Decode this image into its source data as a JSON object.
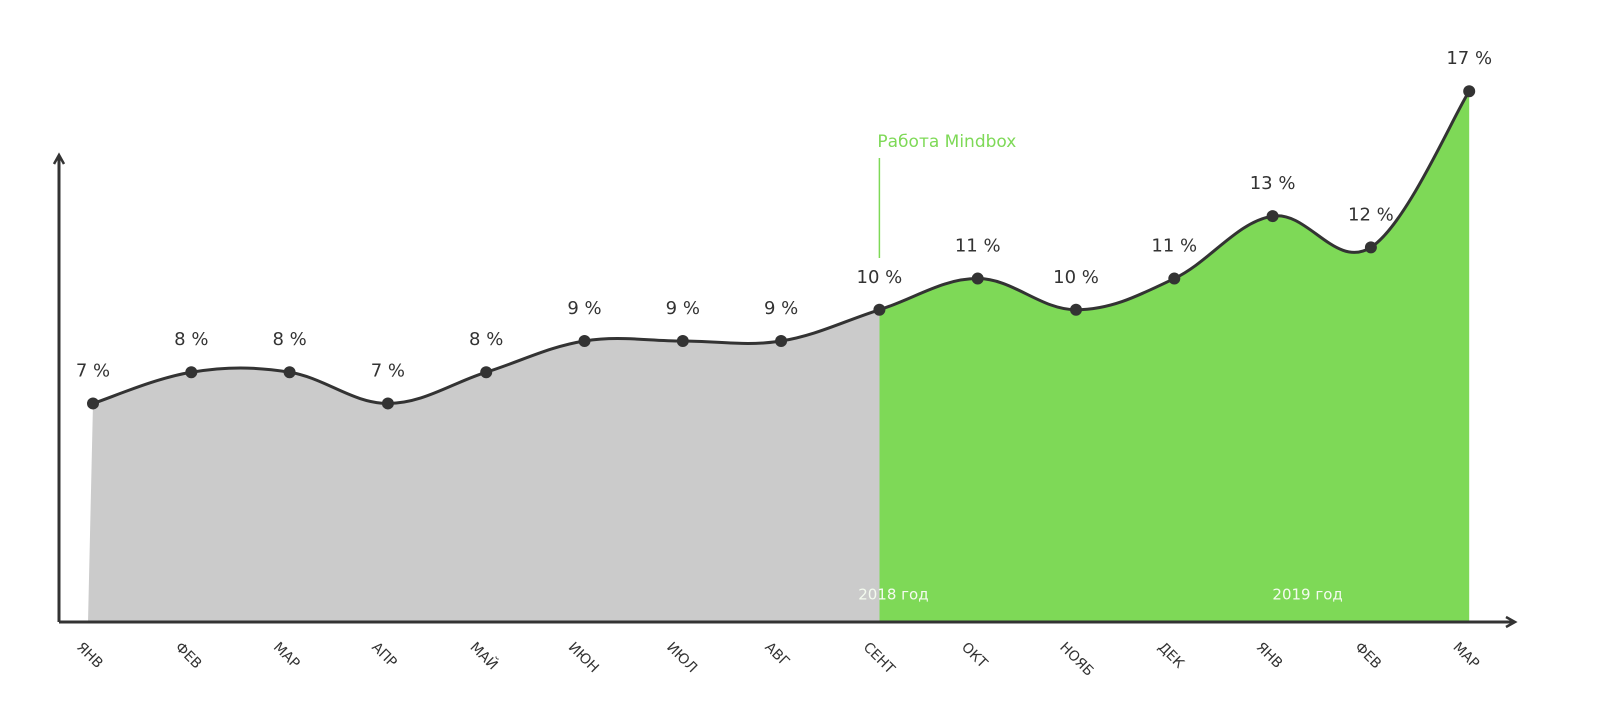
{
  "chart_data": {
    "type": "area",
    "categories": [
      "ЯНВ",
      "ФЕВ",
      "МАР",
      "АПР",
      "МАЙ",
      "ИЮН",
      "ИЮЛ",
      "АВГ",
      "СЕНТ",
      "ОКТ",
      "НОЯБ",
      "ДЕК",
      "ЯНВ",
      "ФЕВ",
      "МАР"
    ],
    "values": [
      7,
      8,
      8,
      7,
      8,
      9,
      9,
      9,
      10,
      11,
      10,
      11,
      13,
      12,
      17
    ],
    "value_labels": [
      "7 %",
      "8 %",
      "8 %",
      "7 %",
      "8 %",
      "9 %",
      "9 %",
      "9 %",
      "10 %",
      "11 %",
      "10 %",
      "11 %",
      "13 %",
      "12 %",
      "17 %"
    ],
    "ylim": [
      0,
      18
    ],
    "color": "#333333",
    "area_colors": [
      "#cbcbcb",
      "#7ed957"
    ],
    "annotation": {
      "text": "Работа Mindbox",
      "index": 8
    },
    "year_labels": [
      {
        "text": "2018 год",
        "index": 8
      },
      {
        "text": "2019 год",
        "index": 12
      }
    ]
  }
}
